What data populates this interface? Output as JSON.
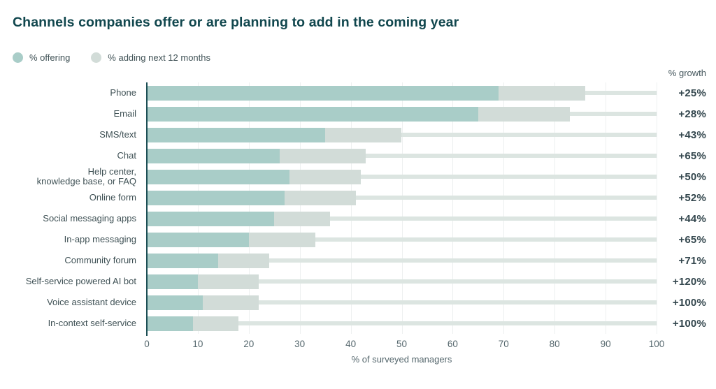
{
  "title": "Channels companies offer or are planning to add in the coming year",
  "legend": [
    {
      "label": "% offering",
      "color": "#a9cdc8"
    },
    {
      "label": "% adding next 12 months",
      "color": "#d2dcd8"
    }
  ],
  "growth_header": "% growth",
  "colors": {
    "offering": "#a9cdc8",
    "adding": "#d2dcd8",
    "track": "#dce5e1",
    "gridline": "#edf0f0",
    "axis_line": "#1d4f55",
    "title_text": "#11474e"
  },
  "chart_data": {
    "type": "bar",
    "orientation": "horizontal",
    "stacked": true,
    "title": "Channels companies offer or are planning to add in the coming year",
    "xlabel": "% of surveyed managers",
    "xlim": [
      0,
      100
    ],
    "x_ticks": [
      0,
      10,
      20,
      30,
      40,
      50,
      60,
      70,
      80,
      90,
      100
    ],
    "grid": "vertical",
    "series_names": [
      "% offering",
      "% adding next 12 months"
    ],
    "rows": [
      {
        "label": "Phone",
        "offering": 69,
        "adding": 17,
        "total": 86,
        "growth": "+25%"
      },
      {
        "label": "Email",
        "offering": 65,
        "adding": 18,
        "total": 83,
        "growth": "+28%"
      },
      {
        "label": "SMS/text",
        "offering": 35,
        "adding": 15,
        "total": 50,
        "growth": "+43%"
      },
      {
        "label": "Chat",
        "offering": 26,
        "adding": 17,
        "total": 43,
        "growth": "+65%"
      },
      {
        "label": "Help center,\nknowledge base, or FAQ",
        "offering": 28,
        "adding": 14,
        "total": 42,
        "growth": "+50%"
      },
      {
        "label": "Online form",
        "offering": 27,
        "adding": 14,
        "total": 41,
        "growth": "+52%"
      },
      {
        "label": "Social messaging apps",
        "offering": 25,
        "adding": 11,
        "total": 36,
        "growth": "+44%"
      },
      {
        "label": "In-app messaging",
        "offering": 20,
        "adding": 13,
        "total": 33,
        "growth": "+65%"
      },
      {
        "label": "Community forum",
        "offering": 14,
        "adding": 10,
        "total": 24,
        "growth": "+71%"
      },
      {
        "label": "Self-service powered AI bot",
        "offering": 10,
        "adding": 12,
        "total": 22,
        "growth": "+120%"
      },
      {
        "label": "Voice assistant device",
        "offering": 11,
        "adding": 11,
        "total": 22,
        "growth": "+100%"
      },
      {
        "label": "In-context self-service",
        "offering": 9,
        "adding": 9,
        "total": 18,
        "growth": "+100%"
      }
    ]
  }
}
